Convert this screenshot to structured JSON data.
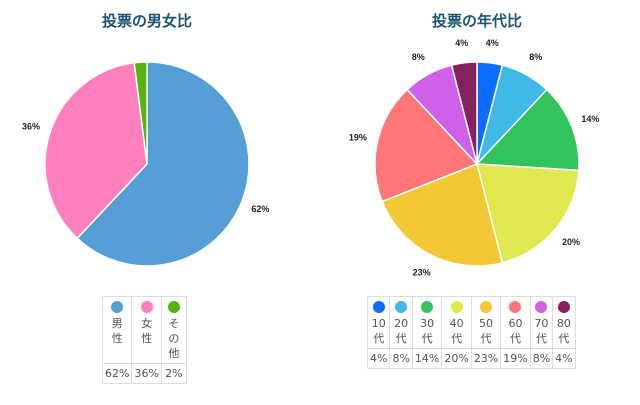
{
  "chart_data": [
    {
      "type": "pie",
      "title": "投票の男女比",
      "categories": [
        "男性",
        "女性",
        "その他"
      ],
      "values": [
        62,
        36,
        2
      ],
      "labels": [
        "62%",
        "36%",
        "2%"
      ],
      "colors": [
        "#559fd6",
        "#ff80be",
        "#55b40f"
      ],
      "legend_position": "bottom-table"
    },
    {
      "type": "pie",
      "title": "投票の年代比",
      "categories": [
        "10代",
        "20代",
        "30代",
        "40代",
        "50代",
        "60代",
        "70代",
        "80代"
      ],
      "values": [
        4,
        8,
        14,
        20,
        23,
        19,
        8,
        4
      ],
      "labels": [
        "4%",
        "8%",
        "14%",
        "20%",
        "23%",
        "19%",
        "8%",
        "4%"
      ],
      "colors": [
        "#0c6cff",
        "#40b9e6",
        "#33c35c",
        "#dfe84e",
        "#f2c935",
        "#ff7676",
        "#d060e8",
        "#85215f"
      ],
      "legend_position": "bottom-table"
    }
  ],
  "gender": {
    "title": "投票の男女比",
    "items": [
      {
        "label_chars": [
          "男",
          "性"
        ],
        "value": "62%",
        "color": "#559fd6",
        "chart_label": "62%"
      },
      {
        "label_chars": [
          "女",
          "性"
        ],
        "value": "36%",
        "color": "#ff80be",
        "chart_label": "36%"
      },
      {
        "label_chars": [
          "そ",
          "の",
          "他"
        ],
        "value": "2%",
        "color": "#55b40f",
        "chart_label": ""
      }
    ]
  },
  "age": {
    "title": "投票の年代比",
    "items": [
      {
        "label_chars": [
          "10",
          "代"
        ],
        "value": "4%",
        "color": "#0c6cff"
      },
      {
        "label_chars": [
          "20",
          "代"
        ],
        "value": "8%",
        "color": "#40b9e6"
      },
      {
        "label_chars": [
          "30",
          "代"
        ],
        "value": "14%",
        "color": "#33c35c"
      },
      {
        "label_chars": [
          "40",
          "代"
        ],
        "value": "20%",
        "color": "#dfe84e"
      },
      {
        "label_chars": [
          "50",
          "代"
        ],
        "value": "23%",
        "color": "#f2c935"
      },
      {
        "label_chars": [
          "60",
          "代"
        ],
        "value": "19%",
        "color": "#ff7676"
      },
      {
        "label_chars": [
          "70",
          "代"
        ],
        "value": "8%",
        "color": "#d060e8"
      },
      {
        "label_chars": [
          "80",
          "代"
        ],
        "value": "4%",
        "color": "#85215f"
      }
    ]
  }
}
